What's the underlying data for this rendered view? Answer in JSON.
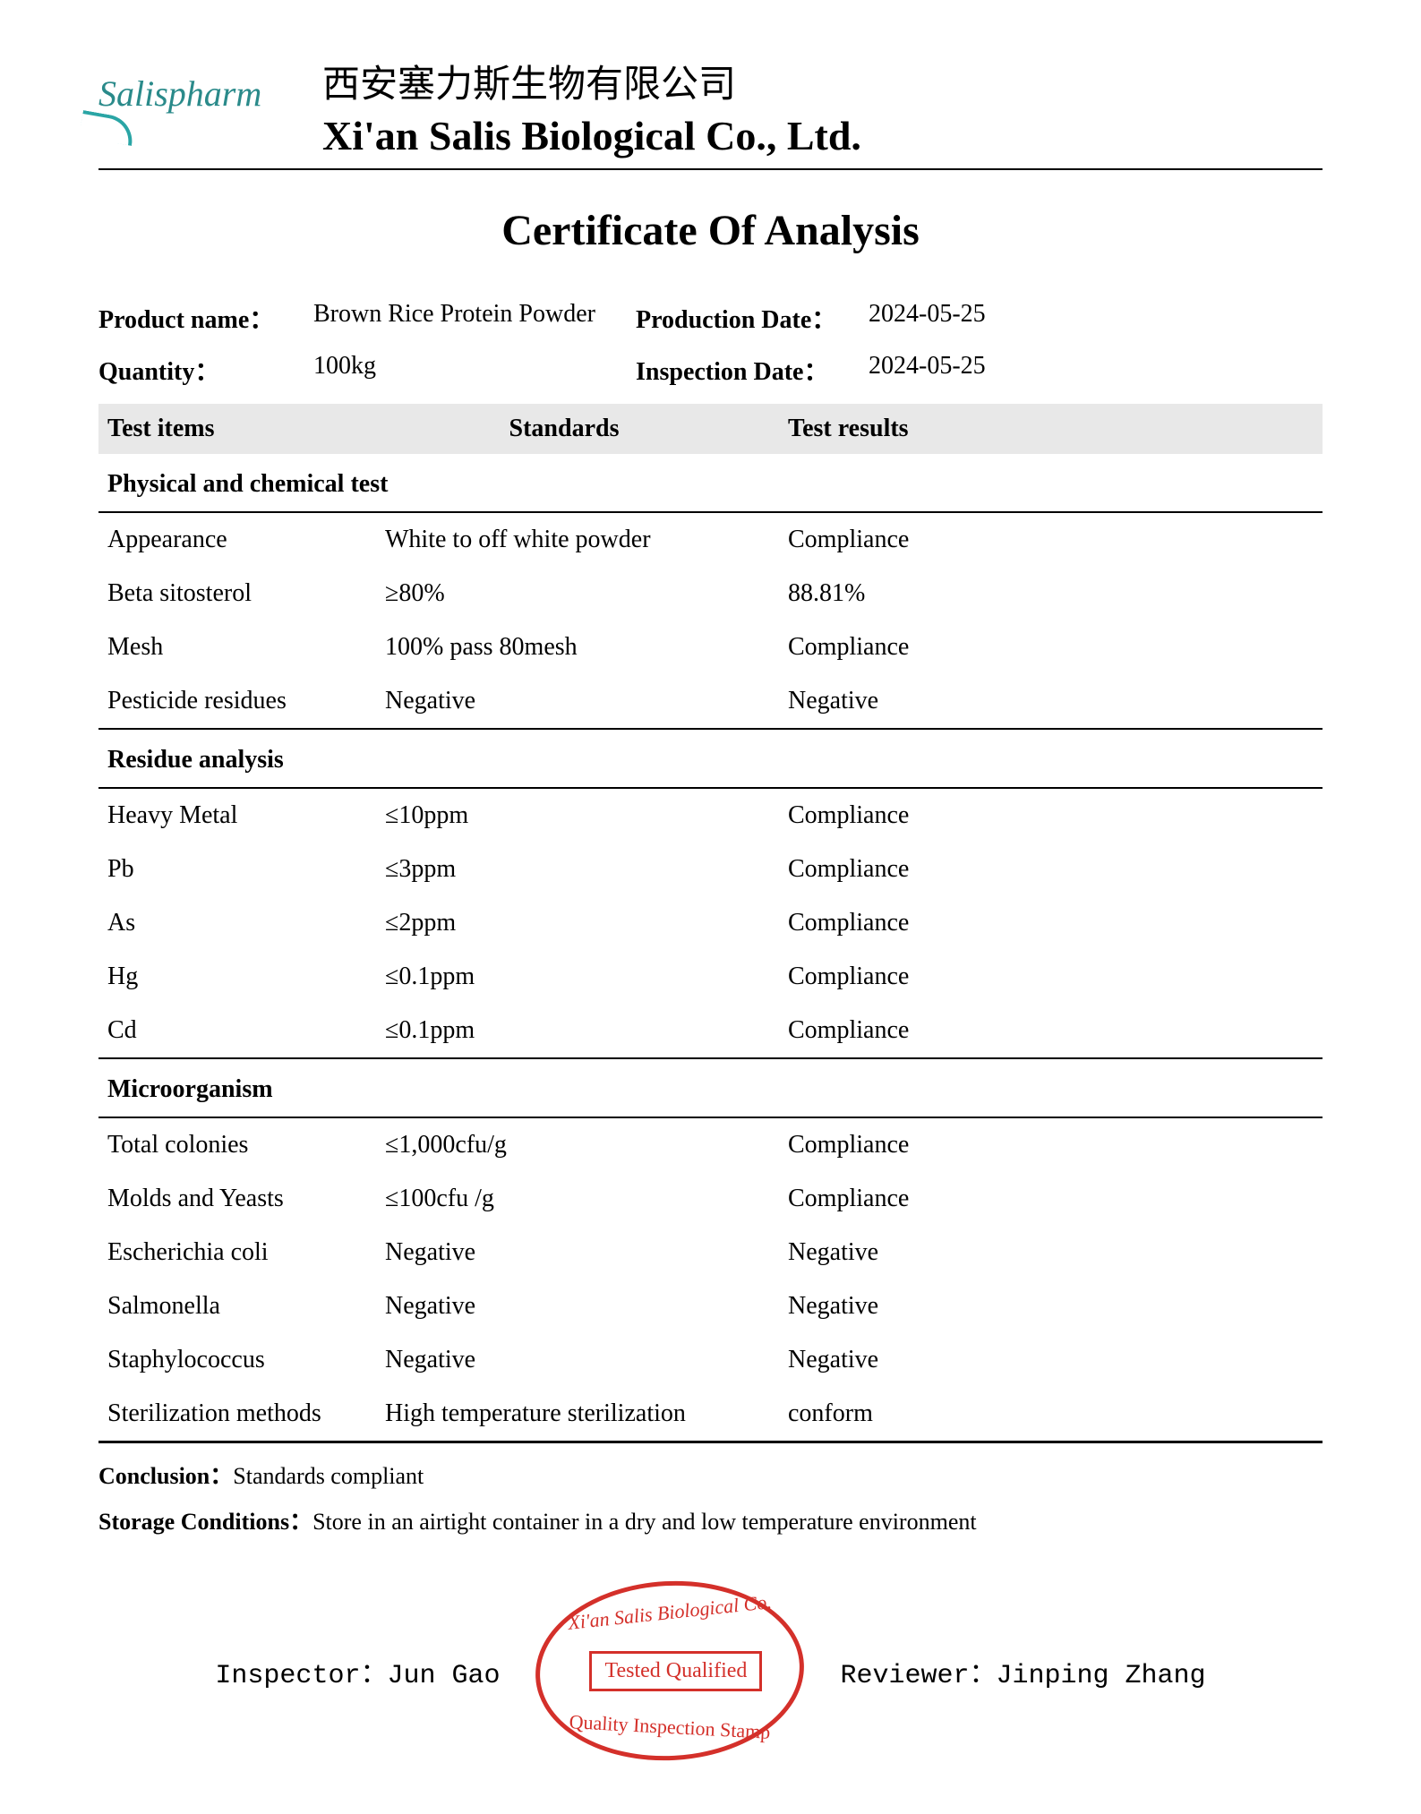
{
  "company": {
    "logo_text": "Salispharm",
    "name_cn": "西安塞力斯生物有限公司",
    "name_en": "Xi'an Salis Biological Co., Ltd."
  },
  "document": {
    "title": "Certificate Of Analysis"
  },
  "info": {
    "product_name_label": "Product name：",
    "product_name": "Brown Rice Protein Powder",
    "production_date_label": "Production Date：",
    "production_date": "2024-05-25",
    "quantity_label": "Quantity：",
    "quantity": "100kg",
    "inspection_date_label": "Inspection Date：",
    "inspection_date": "2024-05-25"
  },
  "table": {
    "headers": {
      "items": "Test items",
      "standards": "Standards",
      "results": "Test results"
    },
    "sections": [
      {
        "title": "Physical and chemical test",
        "rows": [
          {
            "item": "Appearance",
            "standard": "White to off white powder",
            "result": "Compliance"
          },
          {
            "item": "Beta sitosterol",
            "standard": "≥80%",
            "result": "88.81%"
          },
          {
            "item": "Mesh",
            "standard": "100% pass 80mesh",
            "result": "Compliance"
          },
          {
            "item": "Pesticide residues",
            "standard": "Negative",
            "result": "Negative"
          }
        ]
      },
      {
        "title": "Residue analysis",
        "rows": [
          {
            "item": "Heavy Metal",
            "standard": "≤10ppm",
            "result": "Compliance"
          },
          {
            "item": "Pb",
            "standard": "≤3ppm",
            "result": "Compliance"
          },
          {
            "item": "As",
            "standard": "≤2ppm",
            "result": "Compliance"
          },
          {
            "item": "Hg",
            "standard": "≤0.1ppm",
            "result": "Compliance"
          },
          {
            "item": "Cd",
            "standard": "≤0.1ppm",
            "result": "Compliance"
          }
        ]
      },
      {
        "title": "Microorganism",
        "rows": [
          {
            "item": "Total colonies",
            "standard": "≤1,000cfu/g",
            "result": "Compliance"
          },
          {
            "item": "Molds and Yeasts",
            "standard": "≤100cfu /g",
            "result": "Compliance"
          },
          {
            "item": "Escherichia coli",
            "standard": "Negative",
            "result": "Negative"
          },
          {
            "item": "Salmonella",
            "standard": "Negative",
            "result": "Negative"
          },
          {
            "item": " Staphylococcus",
            "standard": "Negative",
            "result": "Negative"
          },
          {
            "item": "Sterilization methods",
            "standard": "High temperature sterilization",
            "result": "conform"
          }
        ]
      }
    ]
  },
  "footer": {
    "conclusion_label": "Conclusion：",
    "conclusion": "Standards compliant",
    "storage_label": "Storage Conditions：",
    "storage": "Store in an airtight container in a dry and low temperature environment",
    "inspector_label": "Inspector：",
    "inspector": "Jun Gao",
    "reviewer_label": "Reviewer：",
    "reviewer": "Jinping Zhang"
  },
  "stamp": {
    "top": "Xi'an Salis Biological Co.",
    "box": "Tested Qualified",
    "bottom": "Quality Inspection Stamp",
    "color": "#d4302a"
  },
  "colors": {
    "text": "#000000",
    "background": "#ffffff",
    "header_row_bg": "#e8e8e8",
    "logo_teal": "#2a8a8a",
    "stamp_red": "#d4302a"
  },
  "typography": {
    "base_font": "Times New Roman",
    "title_fontsize_pt": 36,
    "body_fontsize_pt": 21,
    "company_en_fontsize_pt": 34
  }
}
